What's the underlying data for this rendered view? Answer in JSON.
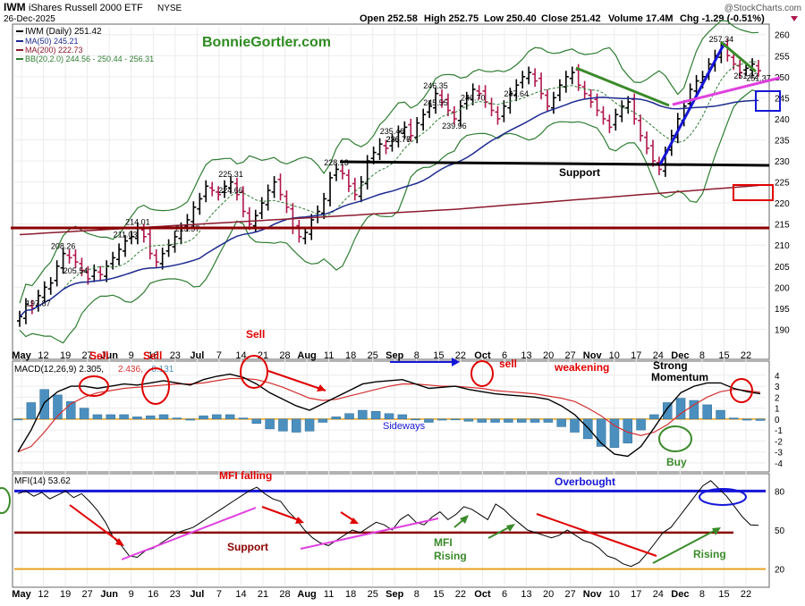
{
  "header": {
    "ticker": "IWM",
    "name": "iShares Russell 2000 ETF",
    "exchange": "NYSE",
    "date": "26-Dec-2025",
    "open": "Open 252.58",
    "high": "High 252.75",
    "low": "Low 250.40",
    "close": "Close 251.42",
    "volume": "Volume 17.4M",
    "change": "Chg -1.29 (-0.51%)",
    "change_icon": "down-triangle-icon",
    "brand": "@StockCharts.com"
  },
  "price_panel": {
    "legend": [
      {
        "label": "IWM (Daily) 251.42",
        "color": "#000000"
      },
      {
        "label": "MA(50) 245.21",
        "color": "#1c2a8f"
      },
      {
        "label": "MA(200) 222.73",
        "color": "#8b1a2e"
      },
      {
        "label": "BB(20,2.0) 244.56 - 250.44 - 256.31",
        "color": "#2e7d32"
      }
    ],
    "watermark": "BonnieGortler.com",
    "annotations": [
      "Support",
      "Sell"
    ]
  },
  "macd_panel": {
    "legend_label": "MACD(12,26,9) 2.305,",
    "legend_signal": "2.436,",
    "legend_hist": "-0.131",
    "annotations": [
      "Sell",
      "Sell",
      "Sell",
      "sell",
      "weakening",
      "Strong",
      "Momentum",
      "Sideways",
      "Buy"
    ]
  },
  "mfi_panel": {
    "legend_label": "MFI(14) 53.62",
    "annotations": [
      "MFI falling",
      "Overbought",
      "Support",
      "MFI",
      "Rising",
      "Rising"
    ]
  },
  "colors": {
    "up_bar": "#000000",
    "down_bar": "#b0174a",
    "ma50": "#1c2a8f",
    "ma200": "#8b1a2e",
    "bollinger": "#2e7d32",
    "macd_line": "#000000",
    "signal_line": "#d32f2f",
    "histogram": "#4b8fbf",
    "support_line": "#8b0000",
    "annotation_red": "#e00000",
    "annotation_blue": "#1515d8",
    "annotation_green": "#3a8a2a",
    "trend_magenta": "#e040e0"
  },
  "chart_data": [
    {
      "type": "candlestick",
      "title": "IWM iShares Russell 2000 ETF NYSE",
      "xlabel": "",
      "ylabel": "",
      "x_tick_labels": [
        "May",
        "12",
        "19",
        "27",
        "Jun",
        "9",
        "16",
        "23",
        "Jul",
        "7",
        "14",
        "21",
        "28",
        "Aug",
        "11",
        "18",
        "25",
        "Sep",
        "8",
        "15",
        "22",
        "Oct",
        "6",
        "13",
        "20",
        "27",
        "Nov",
        "10",
        "17",
        "24",
        "Dec",
        "8",
        "15",
        "22"
      ],
      "ylim": [
        185,
        261
      ],
      "y_ticks": [
        190,
        195,
        200,
        205,
        210,
        215,
        220,
        225,
        230,
        235,
        240,
        245,
        250,
        255,
        260
      ],
      "y_tick_labels": [
        "190",
        "195",
        "200",
        "205",
        "210",
        "215",
        "220",
        "225",
        "230",
        "235",
        "240",
        "245",
        "250",
        "255",
        "260"
      ],
      "close_series": [
        193,
        196,
        195,
        198,
        200,
        201,
        205,
        208,
        207,
        206,
        204,
        202,
        204,
        203,
        205,
        207,
        209,
        211,
        212,
        214,
        212,
        208,
        206,
        208,
        210,
        212,
        214,
        216,
        219,
        221,
        224,
        223,
        222,
        224,
        225,
        222,
        218,
        215,
        217,
        220,
        223,
        225,
        222,
        219,
        214,
        212,
        213,
        216,
        218,
        221,
        226,
        228,
        227,
        224,
        222,
        225,
        230,
        232,
        234,
        233,
        235,
        237,
        238,
        236,
        239,
        241,
        243,
        246,
        244,
        242,
        240,
        243,
        245,
        247,
        246,
        244,
        242,
        240,
        243,
        246,
        248,
        250,
        251,
        249,
        246,
        243,
        245,
        248,
        250,
        251,
        248,
        246,
        244,
        242,
        240,
        238,
        241,
        243,
        244,
        240,
        236,
        233,
        230,
        228,
        232,
        236,
        240,
        243,
        247,
        249,
        250,
        253,
        255,
        257,
        255,
        253,
        251,
        252,
        253,
        251.42
      ],
      "price_labels": [
        {
          "value": 197.87,
          "text": "197.87"
        },
        {
          "value": 208.26,
          "text": "208.26"
        },
        {
          "value": 214.01,
          "text": "214.01"
        },
        {
          "value": 205.54,
          "text": "205.54"
        },
        {
          "value": 224.66,
          "text": "224.66"
        },
        {
          "value": 225.31,
          "text": "225.31"
        },
        {
          "value": 215.57,
          "text": "215.57"
        },
        {
          "value": 211.03,
          "text": "211.03"
        },
        {
          "value": 246.35,
          "text": "246.35"
        },
        {
          "value": 236.76,
          "text": "236.76"
        },
        {
          "value": 247.64,
          "text": "247.64"
        },
        {
          "value": 236.77,
          "text": "236.77"
        },
        {
          "value": 251.92,
          "text": "251.92"
        },
        {
          "value": 251.37,
          "text": "251.37"
        },
        {
          "value": 239.96,
          "text": "239.96"
        },
        {
          "value": 245.55,
          "text": "245.55"
        },
        {
          "value": 235.48,
          "text": "235.48"
        },
        {
          "value": 228.13,
          "text": "228.13"
        },
        {
          "value": 257.34,
          "text": "257.34"
        },
        {
          "value": 246.7,
          "text": "246.70"
        }
      ],
      "support_level": 228.5,
      "long_support_level": 213.8,
      "series": [
        {
          "name": "IWM (Daily)",
          "last": 251.42
        },
        {
          "name": "MA(50)",
          "last": 245.21
        },
        {
          "name": "MA(200)",
          "last": 222.73
        },
        {
          "name": "BB(20,2.0)",
          "lower": 244.56,
          "middle": 250.44,
          "upper": 256.31
        }
      ]
    },
    {
      "type": "bar",
      "title": "MACD(12,26,9)",
      "xlabel": "",
      "ylabel": "",
      "ylim": [
        -4.5,
        4.8
      ],
      "y_ticks": [
        -4,
        -3,
        -2,
        -1,
        0,
        1,
        2,
        3,
        4
      ],
      "y_tick_labels": [
        "-4",
        "-3",
        "-2",
        "-1",
        "0",
        "1",
        "2",
        "3",
        "4"
      ],
      "macd_series": [
        -3,
        -1,
        1.5,
        2.5,
        3,
        3,
        2.8,
        3,
        3.2,
        3.1,
        3.3,
        3.5,
        3.3,
        3.1,
        3.6,
        3.9,
        4.1,
        3.8,
        3.2,
        2.4,
        1.8,
        1.2,
        0.8,
        1.4,
        2,
        2.6,
        3.2,
        3.4,
        3.5,
        3.6,
        3.2,
        2.8,
        2.9,
        3,
        2.7,
        2.5,
        2.3,
        2.2,
        2.1,
        2,
        1.8,
        1.2,
        0.4,
        -0.8,
        -2.2,
        -3.2,
        -3.4,
        -2.5,
        -0.8,
        1,
        2.4,
        3,
        3.3,
        3.3,
        2.8,
        2.5,
        2.3
      ],
      "signal_series": [
        -3,
        -2.5,
        -1.2,
        0.3,
        1.4,
        2,
        2.4,
        2.6,
        2.8,
        2.9,
        3,
        3.1,
        3.2,
        3.2,
        3.3,
        3.5,
        3.7,
        3.7,
        3.6,
        3.3,
        2.9,
        2.4,
        1.9,
        1.7,
        1.8,
        2.1,
        2.4,
        2.7,
        3,
        3.2,
        3.2,
        3.1,
        3,
        3,
        2.9,
        2.8,
        2.6,
        2.5,
        2.4,
        2.3,
        2.1,
        1.9,
        1.6,
        1,
        0.3,
        -0.6,
        -1.2,
        -1.5,
        -1.2,
        -0.5,
        0.5,
        1.3,
        2,
        2.5,
        2.7,
        2.6,
        2.436
      ],
      "histogram": [
        0,
        1.5,
        2.7,
        2.2,
        1.6,
        1,
        0.4,
        0.4,
        0.4,
        0.2,
        0.3,
        0.4,
        0.1,
        -0.1,
        0.3,
        0.4,
        0.4,
        0.1,
        -0.4,
        -0.9,
        -1.1,
        -1.2,
        -1.1,
        -0.3,
        0.2,
        0.5,
        0.8,
        0.7,
        0.5,
        0.4,
        0,
        -0.3,
        -0.1,
        0,
        -0.2,
        -0.3,
        -0.3,
        -0.3,
        -0.3,
        -0.3,
        -0.3,
        -0.7,
        -1.2,
        -1.8,
        -2.5,
        -2.6,
        -2.2,
        -1,
        0.4,
        1.5,
        1.9,
        1.7,
        1.3,
        0.8,
        0.1,
        -0.1,
        -0.131
      ],
      "last_values": {
        "macd": 2.305,
        "signal": 2.436,
        "histogram": -0.131
      }
    },
    {
      "type": "line",
      "title": "MFI(14)",
      "xlabel": "",
      "ylabel": "",
      "ylim": [
        8,
        92
      ],
      "y_ticks": [
        20,
        50,
        80
      ],
      "y_tick_labels": [
        "20",
        "50",
        "80"
      ],
      "mfi_series": [
        78,
        80,
        76,
        79,
        74,
        77,
        80,
        75,
        78,
        72,
        65,
        56,
        44,
        38,
        30,
        29,
        34,
        36,
        40,
        44,
        48,
        50,
        52,
        56,
        60,
        64,
        68,
        72,
        76,
        80,
        83,
        78,
        74,
        72,
        64,
        58,
        50,
        44,
        40,
        38,
        42,
        46,
        50,
        48,
        52,
        56,
        54,
        50,
        58,
        62,
        56,
        54,
        60,
        64,
        58,
        62,
        68,
        66,
        62,
        58,
        70,
        66,
        60,
        55,
        50,
        48,
        46,
        44,
        46,
        50,
        46,
        42,
        40,
        36,
        30,
        28,
        24,
        22,
        25,
        32,
        40,
        48,
        52,
        60,
        68,
        76,
        84,
        88,
        82,
        76,
        68,
        60,
        54,
        53.62
      ],
      "overbought_level": 80,
      "support_level": 48,
      "last": 53.62
    }
  ]
}
